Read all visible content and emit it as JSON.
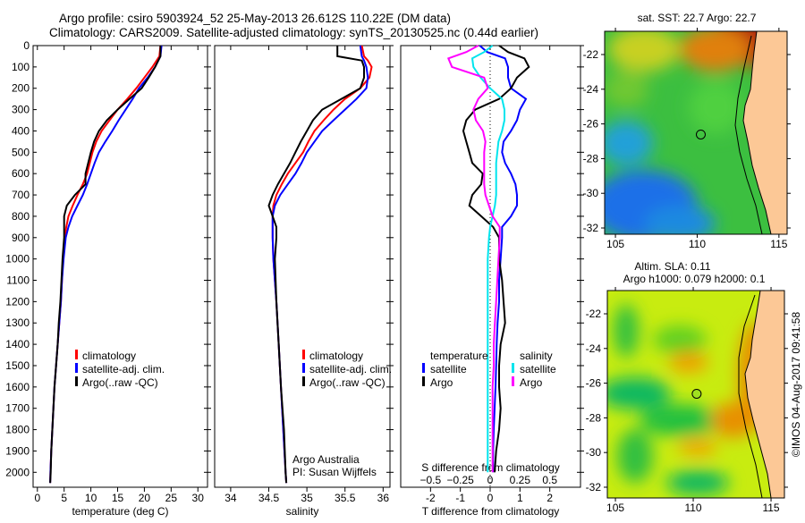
{
  "header": {
    "title_line1": "Argo profile: csiro 5903924_52 25-May-2013 26.612S 110.22E (DM data)",
    "title_line2": "Climatology: CARS2009. Satellite-adjusted climatology: synTS_20130525.nc (0.44d earlier)"
  },
  "credits": {
    "line1": "Argo Australia",
    "line2": "PI: Susan Wijffels",
    "stamp": "©IMOS 04-Aug-2017 09:41:58"
  },
  "colors": {
    "climatology": "#ff0000",
    "satellite": "#0000ff",
    "argo": "#000000",
    "sal_satellite": "#00e5ee",
    "sal_argo": "#ff00ff",
    "land": "#fcc896"
  },
  "chart_data": [
    {
      "id": "temperature",
      "type": "line",
      "xlabel": "temperature (deg C)",
      "ylabel": "",
      "xlim": [
        -0.8,
        31.8
      ],
      "ylim": [
        0,
        2070
      ],
      "xticks": [
        0,
        5,
        10,
        15,
        20,
        25,
        30
      ],
      "yticks": [
        0,
        100,
        200,
        300,
        400,
        500,
        600,
        700,
        800,
        900,
        1000,
        1100,
        1200,
        1300,
        1400,
        1500,
        1600,
        1700,
        1800,
        1900,
        2000
      ],
      "legend": [
        "climatology",
        "satellite-adj. clim.",
        "Argo(..raw -QC)"
      ],
      "depth": [
        0,
        50,
        100,
        150,
        200,
        250,
        300,
        350,
        400,
        450,
        500,
        550,
        600,
        650,
        700,
        750,
        800,
        850,
        900,
        1000,
        1100,
        1200,
        1300,
        1400,
        1500,
        1600,
        1700,
        1800,
        1900,
        2000,
        2050
      ],
      "series": [
        {
          "name": "climatology",
          "color_key": "climatology",
          "values": [
            23,
            22.8,
            21.5,
            20,
            18.5,
            16.8,
            15,
            13.5,
            12,
            11,
            10.3,
            9.8,
            9.3,
            8.5,
            7.5,
            6.6,
            5.8,
            5.4,
            5.1,
            4.8,
            4.6,
            4.4,
            4.1,
            3.8,
            3.5,
            3.2,
            3.0,
            2.8,
            2.6,
            2.45,
            2.4
          ]
        },
        {
          "name": "satellite-adj. clim.",
          "color_key": "satellite",
          "values": [
            23.2,
            23,
            22,
            20.6,
            19,
            17.8,
            16.5,
            15.2,
            14,
            12.7,
            11.5,
            10.7,
            10,
            9.3,
            8.5,
            7.5,
            6.5,
            5.8,
            5.3,
            4.9,
            4.6,
            4.4,
            4.1,
            3.8,
            3.5,
            3.2,
            3.0,
            2.8,
            2.6,
            2.45,
            2.4
          ]
        },
        {
          "name": "Argo(..raw -QC)",
          "color_key": "argo",
          "values": [
            23,
            23,
            22,
            20.8,
            19.5,
            17.2,
            15,
            13,
            11.5,
            10.6,
            10,
            9.5,
            9,
            9,
            7,
            5.5,
            5,
            5,
            5,
            4.7,
            4.5,
            4.3,
            4.0,
            3.8,
            3.5,
            3.2,
            3.0,
            2.8,
            2.6,
            2.5,
            2.4
          ]
        }
      ]
    },
    {
      "id": "salinity",
      "type": "line",
      "xlabel": "salinity",
      "xlim": [
        33.79,
        36.09
      ],
      "ylim": [
        0,
        2070
      ],
      "xticks": [
        34,
        34.5,
        35,
        35.5,
        36
      ],
      "legend": [
        "climatology",
        "satellite-adj. clim.",
        "Argo(..raw -QC)"
      ],
      "depth": [
        0,
        50,
        70,
        100,
        150,
        200,
        250,
        300,
        350,
        400,
        450,
        500,
        550,
        600,
        650,
        700,
        750,
        800,
        850,
        900,
        1000,
        1200,
        1400,
        1600,
        1800,
        2000,
        2050
      ],
      "series": [
        {
          "name": "climatology",
          "color_key": "climatology",
          "values": [
            35.72,
            35.75,
            35.8,
            35.85,
            35.82,
            35.7,
            35.5,
            35.35,
            35.22,
            35.1,
            35.02,
            34.95,
            34.85,
            34.75,
            34.67,
            34.6,
            34.56,
            34.55,
            34.55,
            34.55,
            34.56,
            34.6,
            34.63,
            34.66,
            34.69,
            34.72,
            34.73
          ]
        },
        {
          "name": "satellite-adj. clim.",
          "color_key": "satellite",
          "values": [
            35.7,
            35.72,
            35.75,
            35.78,
            35.8,
            35.78,
            35.65,
            35.5,
            35.35,
            35.2,
            35.1,
            35.0,
            34.93,
            34.85,
            34.75,
            34.65,
            34.58,
            34.55,
            34.55,
            34.55,
            34.56,
            34.6,
            34.63,
            34.66,
            34.69,
            34.72,
            34.73
          ]
        },
        {
          "name": "Argo(..raw -QC)",
          "color_key": "argo",
          "values": [
            35.4,
            35.4,
            35.72,
            35.75,
            35.75,
            35.7,
            35.45,
            35.2,
            35.08,
            35.0,
            34.92,
            34.85,
            34.78,
            34.7,
            34.62,
            34.55,
            34.5,
            34.55,
            34.6,
            34.6,
            34.58,
            34.6,
            34.63,
            34.66,
            34.7,
            34.72,
            34.73
          ]
        }
      ]
    },
    {
      "id": "differences",
      "type": "line",
      "xlabel": "T difference from climatology",
      "xlabel2": "S difference from climatology",
      "xlim": [
        -3,
        3.03
      ],
      "xlim2": [
        -0.75,
        0.7575
      ],
      "ylim": [
        0,
        2070
      ],
      "xticks": [
        -2,
        -1,
        0,
        1,
        2
      ],
      "xticks2": [
        -0.5,
        -0.25,
        0,
        0.25,
        0.5
      ],
      "legend_headers": [
        "temperature",
        "salinity"
      ],
      "legend": [
        "satellite",
        "Argo",
        "satellite",
        "Argo"
      ],
      "depth": [
        0,
        30,
        60,
        100,
        150,
        200,
        250,
        300,
        350,
        400,
        450,
        500,
        550,
        600,
        650,
        700,
        750,
        800,
        850,
        900,
        1000,
        1100,
        1200,
        1300,
        1400,
        1500,
        1600,
        1700,
        1800,
        1900,
        2000
      ],
      "series": [
        {
          "name": "satellite",
          "quantity": "T",
          "color_key": "satellite",
          "values": [
            -0.35,
            -0.1,
            0.5,
            0.6,
            0.6,
            0.7,
            1.2,
            1.0,
            0.9,
            0.7,
            0.45,
            0.4,
            0.5,
            0.7,
            0.85,
            0.9,
            0.9,
            0.7,
            0.4,
            0.4,
            0.35,
            0.3,
            0.3,
            0.25,
            0.22,
            0.2,
            0.18,
            0.15,
            0.12,
            0.1,
            0.1
          ]
        },
        {
          "name": "Argo",
          "quantity": "T",
          "color_key": "argo",
          "values": [
            0.3,
            0.6,
            1.15,
            1.3,
            0.9,
            0.7,
            0.3,
            -0.5,
            -0.8,
            -0.9,
            -0.8,
            -0.7,
            -0.6,
            -0.25,
            -0.3,
            -0.6,
            -0.7,
            -0.3,
            0.1,
            0.3,
            0.3,
            0.4,
            0.45,
            0.5,
            0.35,
            0.3,
            0.3,
            0.35,
            0.3,
            0.2,
            0.15
          ]
        },
        {
          "name": "satellite",
          "quantity": "S",
          "color_key": "sal_satellite",
          "values": [
            0.02,
            -0.05,
            -0.15,
            -0.14,
            -0.08,
            0.0,
            0.1,
            0.12,
            0.12,
            0.1,
            0.07,
            0.06,
            0.05,
            0.05,
            0.05,
            0.05,
            0.04,
            0.02,
            0.0,
            -0.01,
            -0.02,
            -0.02,
            -0.02,
            -0.02,
            -0.02,
            -0.02,
            -0.02,
            -0.02,
            -0.02,
            -0.02,
            -0.02
          ]
        },
        {
          "name": "Argo",
          "quantity": "S",
          "color_key": "sal_argo",
          "values": [
            -0.1,
            -0.2,
            -0.35,
            -0.32,
            -0.05,
            -0.02,
            -0.1,
            -0.14,
            -0.12,
            -0.06,
            -0.04,
            -0.05,
            -0.05,
            -0.05,
            -0.05,
            -0.04,
            -0.01,
            0.02,
            0.08,
            0.08,
            0.07,
            0.06,
            0.05,
            0.04,
            0.03,
            0.03,
            0.02,
            0.02,
            0.02,
            0.02,
            0.02
          ]
        }
      ]
    },
    {
      "id": "sst_map",
      "type": "heatmap",
      "title": "sat. SST: 22.7 Argo: 22.7",
      "xlim": [
        104.34,
        115.5
      ],
      "ylim": [
        -32.36,
        -20.66
      ],
      "xticks": [
        105,
        110,
        115
      ],
      "yticks": [
        -22,
        -24,
        -26,
        -28,
        -30,
        -32
      ],
      "argo_position": {
        "lon": 110.22,
        "lat": -26.612
      }
    },
    {
      "id": "sla_map",
      "type": "heatmap",
      "title_line1": "Altim. SLA: 0.11",
      "title_line2": "Argo h1000: 0.079 h2000: 0.1",
      "xlim": [
        104.48,
        115.86
      ],
      "ylim": [
        -32.62,
        -20.66
      ],
      "xticks": [
        105,
        110,
        115
      ],
      "yticks": [
        -22,
        -24,
        -26,
        -28,
        -30,
        -32
      ],
      "argo_position": {
        "lon": 110.22,
        "lat": -26.612
      }
    }
  ]
}
